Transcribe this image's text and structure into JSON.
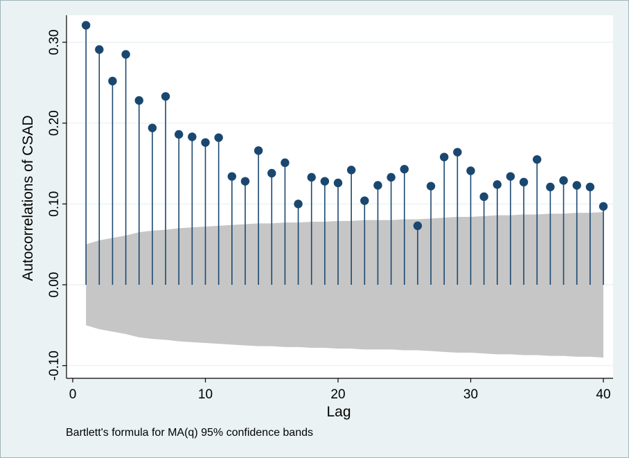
{
  "chart_data": {
    "type": "scatter",
    "subtype": "autocorrelogram",
    "title": "",
    "xlabel": "Lag",
    "ylabel": "Autocorrelations of CSAD",
    "note": "Bartlett's formula for MA(q) 95% confidence bands",
    "xlim": [
      0,
      40
    ],
    "ylim": [
      -0.1,
      0.32
    ],
    "xticks": [
      0,
      10,
      20,
      30,
      40
    ],
    "xtick_labels": [
      "0",
      "10",
      "20",
      "30",
      "40"
    ],
    "yticks": [
      -0.1,
      0.0,
      0.1,
      0.2,
      0.3
    ],
    "ytick_labels": [
      "-0.10",
      "0.00",
      "0.10",
      "0.20",
      "0.30"
    ],
    "grid": true,
    "colors": {
      "marker": "#1a476f",
      "band": "#c6c6c6",
      "plot_bg": "#ffffff",
      "outer_bg": "#eaf2f3",
      "grid": "#eaf2f3"
    },
    "lags": [
      1,
      2,
      3,
      4,
      5,
      6,
      7,
      8,
      9,
      10,
      11,
      12,
      13,
      14,
      15,
      16,
      17,
      18,
      19,
      20,
      21,
      22,
      23,
      24,
      25,
      26,
      27,
      28,
      29,
      30,
      31,
      32,
      33,
      34,
      35,
      36,
      37,
      38,
      39,
      40
    ],
    "acf": [
      0.321,
      0.291,
      0.252,
      0.285,
      0.228,
      0.194,
      0.233,
      0.186,
      0.183,
      0.176,
      0.182,
      0.134,
      0.128,
      0.166,
      0.138,
      0.151,
      0.1,
      0.133,
      0.128,
      0.126,
      0.142,
      0.104,
      0.123,
      0.133,
      0.143,
      0.073,
      0.122,
      0.158,
      0.164,
      0.141,
      0.109,
      0.124,
      0.134,
      0.127,
      0.155,
      0.121,
      0.129,
      0.123,
      0.121,
      0.097
    ],
    "conf_band_upper": [
      0.05,
      0.055,
      0.058,
      0.061,
      0.065,
      0.067,
      0.068,
      0.07,
      0.071,
      0.072,
      0.073,
      0.074,
      0.075,
      0.076,
      0.076,
      0.077,
      0.077,
      0.078,
      0.078,
      0.079,
      0.079,
      0.08,
      0.08,
      0.08,
      0.081,
      0.081,
      0.082,
      0.083,
      0.084,
      0.084,
      0.085,
      0.086,
      0.086,
      0.087,
      0.087,
      0.088,
      0.088,
      0.089,
      0.089,
      0.09
    ]
  }
}
